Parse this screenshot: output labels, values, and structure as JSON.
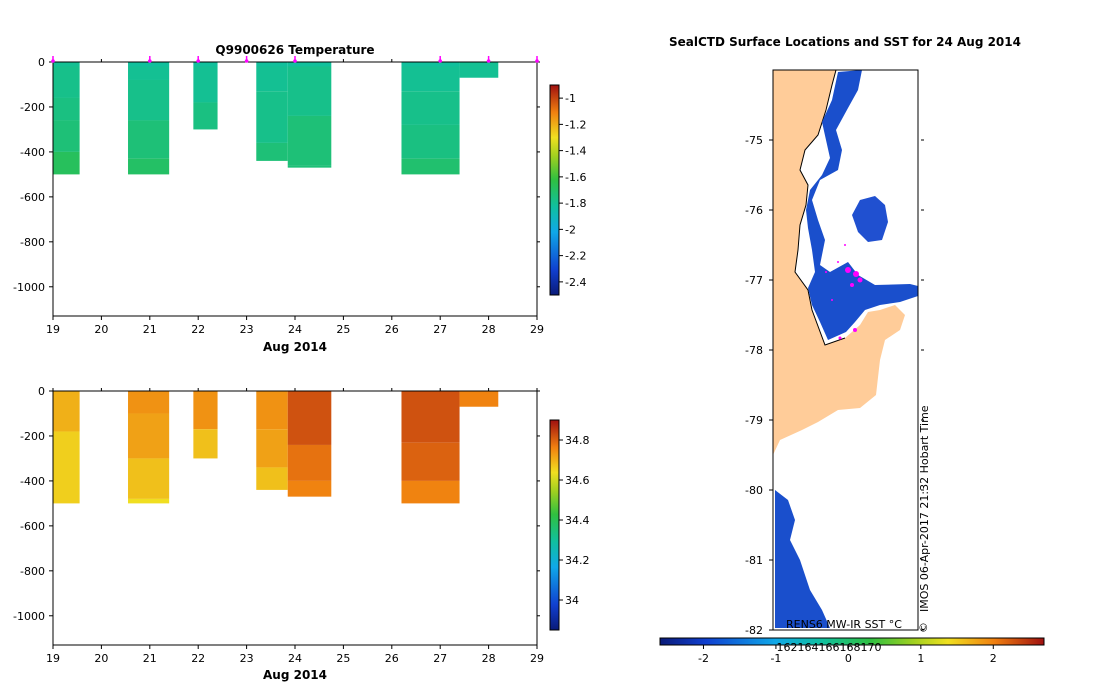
{
  "chart_data": [
    {
      "type": "heatmap",
      "title": "Q9900626  Temperature",
      "xlabel": "Aug 2014",
      "ylabel": "",
      "xlim": [
        19,
        29
      ],
      "ylim": [
        -1130,
        0
      ],
      "x_ticks": [
        "19",
        "20",
        "21",
        "22",
        "23",
        "24",
        "25",
        "26",
        "27",
        "28",
        "29"
      ],
      "y_ticks": [
        "0",
        "-200",
        "-400",
        "-600",
        "-800",
        "-1000"
      ],
      "colorbar": {
        "min": -2.5,
        "max": -0.9,
        "ticks": [
          "-1",
          "-1.2",
          "-1.4",
          "-1.6",
          "-1.8",
          "-2",
          "-2.2",
          "-2.4"
        ]
      },
      "profile_times": [
        19,
        21,
        22,
        23,
        24,
        27,
        28,
        29
      ],
      "columns": [
        {
          "x0": 19.0,
          "x1": 19.55,
          "cells": [
            [
              0,
              -20,
              -1.8
            ],
            [
              -20,
              -160,
              -1.78
            ],
            [
              -160,
              -260,
              -1.76
            ],
            [
              -260,
              -400,
              -1.74
            ],
            [
              -400,
              -500,
              -1.68
            ]
          ]
        },
        {
          "x0": 20.55,
          "x1": 21.4,
          "cells": [
            [
              0,
              -20,
              -1.82
            ],
            [
              -20,
              -80,
              -1.8
            ],
            [
              -80,
              -260,
              -1.78
            ],
            [
              -260,
              -430,
              -1.74
            ],
            [
              -430,
              -500,
              -1.7
            ]
          ]
        },
        {
          "x0": 21.9,
          "x1": 22.4,
          "cells": [
            [
              0,
              -20,
              -1.82
            ],
            [
              -20,
              -180,
              -1.8
            ],
            [
              -180,
              -300,
              -1.76
            ]
          ]
        },
        {
          "x0": 23.2,
          "x1": 23.85,
          "cells": [
            [
              0,
              -20,
              -1.82
            ],
            [
              -20,
              -130,
              -1.8
            ],
            [
              -130,
              -360,
              -1.78
            ],
            [
              -360,
              -440,
              -1.74
            ]
          ]
        },
        {
          "x0": 23.85,
          "x1": 24.75,
          "cells": [
            [
              0,
              -20,
              -1.82
            ],
            [
              -20,
              -240,
              -1.78
            ],
            [
              -240,
              -460,
              -1.74
            ],
            [
              -460,
              -470,
              -1.74
            ]
          ]
        },
        {
          "x0": 26.2,
          "x1": 27.4,
          "cells": [
            [
              0,
              -20,
              -1.82
            ],
            [
              -20,
              -130,
              -1.8
            ],
            [
              -130,
              -280,
              -1.78
            ],
            [
              -280,
              -430,
              -1.76
            ],
            [
              -430,
              -500,
              -1.72
            ]
          ]
        },
        {
          "x0": 27.4,
          "x1": 28.2,
          "cells": [
            [
              0,
              -70,
              -1.8
            ]
          ]
        }
      ]
    },
    {
      "type": "heatmap",
      "title": "",
      "xlabel": "Aug 2014",
      "ylabel": "",
      "xlim": [
        19,
        29
      ],
      "ylim": [
        -1130,
        0
      ],
      "x_ticks": [
        "19",
        "20",
        "21",
        "22",
        "23",
        "24",
        "25",
        "26",
        "27",
        "28",
        "29"
      ],
      "y_ticks": [
        "0",
        "-200",
        "-400",
        "-600",
        "-800",
        "-1000"
      ],
      "colorbar": {
        "min": 33.85,
        "max": 34.9,
        "ticks": [
          "34.8",
          "34.6",
          "34.4",
          "34.2",
          "34"
        ]
      },
      "columns": [
        {
          "x0": 19.0,
          "x1": 19.55,
          "cells": [
            [
              0,
              -180,
              34.7
            ],
            [
              -180,
              -500,
              34.66
            ]
          ]
        },
        {
          "x0": 20.55,
          "x1": 21.4,
          "cells": [
            [
              0,
              -100,
              34.74
            ],
            [
              -100,
              -300,
              34.72
            ],
            [
              -300,
              -480,
              34.68
            ],
            [
              -480,
              -500,
              34.64
            ]
          ]
        },
        {
          "x0": 21.9,
          "x1": 22.4,
          "cells": [
            [
              0,
              -170,
              34.74
            ],
            [
              -170,
              -300,
              34.68
            ]
          ]
        },
        {
          "x0": 23.2,
          "x1": 23.85,
          "cells": [
            [
              0,
              -170,
              34.74
            ],
            [
              -170,
              -340,
              34.72
            ],
            [
              -340,
              -440,
              34.68
            ]
          ]
        },
        {
          "x0": 23.85,
          "x1": 24.75,
          "cells": [
            [
              0,
              -240,
              34.82
            ],
            [
              -240,
              -400,
              34.78
            ],
            [
              -400,
              -470,
              34.76
            ]
          ]
        },
        {
          "x0": 26.2,
          "x1": 27.4,
          "cells": [
            [
              0,
              -230,
              34.82
            ],
            [
              -230,
              -400,
              34.8
            ],
            [
              -400,
              -500,
              34.76
            ]
          ]
        },
        {
          "x0": 27.4,
          "x1": 28.2,
          "cells": [
            [
              0,
              -70,
              34.76
            ]
          ]
        }
      ]
    },
    {
      "type": "map",
      "title": "SealCTD Surface Locations and SST for 24 Aug 2014",
      "y_ticks": [
        "-75",
        "-76",
        "-77",
        "-78",
        "-79",
        "-80",
        "-81",
        "-82"
      ],
      "ylim": [
        -82,
        -74
      ],
      "colorbar": {
        "label": "RENS6 MW-IR SST °C",
        "min": -2.6,
        "max": 2.7,
        "ticks": [
          "-2",
          "-1",
          "0",
          "1",
          "2"
        ]
      },
      "lon_ticks": [
        "162",
        "164",
        "166",
        "168",
        "170"
      ],
      "side_label": "IMOS 06-Apr-2017 21:32 Hobart Time",
      "copyright": "©"
    }
  ]
}
